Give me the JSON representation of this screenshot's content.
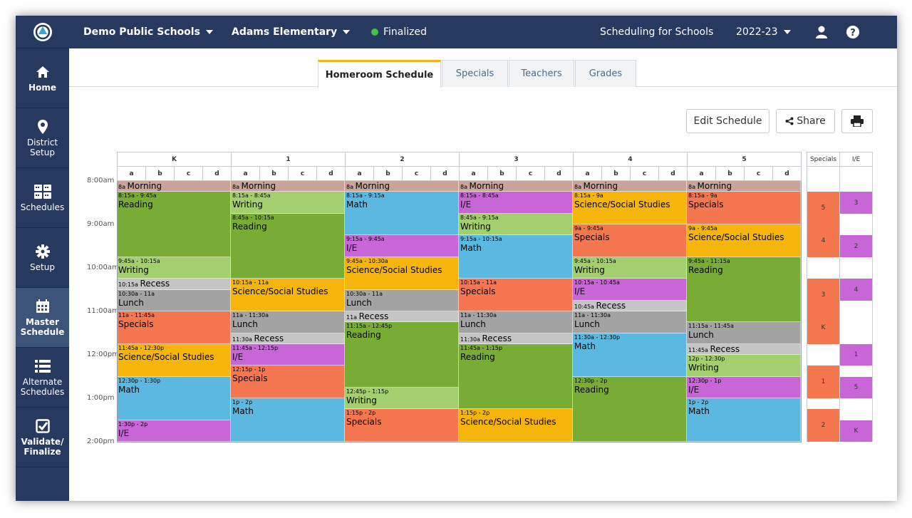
{
  "sidebar": {
    "items": [
      {
        "label": "Home",
        "icon": "home-icon"
      },
      {
        "label": "District\nSetup",
        "icon": "map-pin-icon"
      },
      {
        "label": "Schedules",
        "icon": "calendar-grid-icon"
      },
      {
        "label": "Setup",
        "icon": "gear-icon"
      },
      {
        "label": "Master\nSchedule",
        "icon": "calendar-icon"
      },
      {
        "label": "Alternate\nSchedules",
        "icon": "list-icon"
      },
      {
        "label": "Validate/\nFinalize",
        "icon": "checkbox-icon"
      }
    ]
  },
  "topbar": {
    "district": "Demo Public Schools",
    "school": "Adams Elementary",
    "status": "Finalized",
    "product": "Scheduling for Schools",
    "year": "2022-23"
  },
  "tabs": [
    "Homeroom Schedule",
    "Specials",
    "Teachers",
    "Grades"
  ],
  "actions": {
    "edit": "Edit Schedule",
    "share": "Share"
  },
  "grades": [
    "K",
    "1",
    "2",
    "3",
    "4",
    "5"
  ],
  "sections": [
    "a",
    "b",
    "c",
    "d"
  ],
  "side_headers": [
    "Specials",
    "I/E"
  ],
  "times": [
    "8:00am",
    "9:00am",
    "10:00am",
    "11:00am",
    "12:00pm",
    "1:00pm",
    "2:00pm"
  ],
  "colors": {
    "Morning": "#c9a49a",
    "Reading": "#78ac35",
    "Writing": "#a3cf6e",
    "Math": "#5bb9e1",
    "I/E": "#c866d8",
    "Science/Social Studies": "#f6b50b",
    "Specials": "#f4774f",
    "Recess": "#c5c5c5",
    "Lunch": "#a3a3a3"
  },
  "schedule": [
    [
      {
        "s": 0,
        "e": 15,
        "time": "8a",
        "name": "Morning",
        "inline": true
      },
      {
        "s": 15,
        "e": 105,
        "time": "8:15a - 9:45a",
        "name": "Reading"
      },
      {
        "s": 105,
        "e": 135,
        "time": "9:45a - 10:15a",
        "name": "Writing"
      },
      {
        "s": 135,
        "e": 150,
        "time": "10:15a",
        "name": "Recess",
        "inline": true
      },
      {
        "s": 150,
        "e": 180,
        "time": "10:30a - 11a",
        "name": "Lunch"
      },
      {
        "s": 180,
        "e": 225,
        "time": "11a - 11:45a",
        "name": "Specials"
      },
      {
        "s": 225,
        "e": 270,
        "time": "11:45a - 12:30p",
        "name": "Science/Social Studies"
      },
      {
        "s": 270,
        "e": 330,
        "time": "12:30p - 1:30p",
        "name": "Math"
      },
      {
        "s": 330,
        "e": 360,
        "time": "1:30p - 2p",
        "name": "I/E"
      }
    ],
    [
      {
        "s": 0,
        "e": 15,
        "time": "8a",
        "name": "Morning",
        "inline": true
      },
      {
        "s": 15,
        "e": 45,
        "time": "8:15a - 8:45a",
        "name": "Writing"
      },
      {
        "s": 45,
        "e": 135,
        "time": "8:45a - 10:15a",
        "name": "Reading"
      },
      {
        "s": 135,
        "e": 180,
        "time": "10:15a - 11a",
        "name": "Science/Social Studies"
      },
      {
        "s": 180,
        "e": 210,
        "time": "11a - 11:30a",
        "name": "Lunch"
      },
      {
        "s": 210,
        "e": 225,
        "time": "11:30a",
        "name": "Recess",
        "inline": true
      },
      {
        "s": 225,
        "e": 255,
        "time": "11:45a - 12:15p",
        "name": "I/E"
      },
      {
        "s": 255,
        "e": 300,
        "time": "12:15p - 1p",
        "name": "Specials"
      },
      {
        "s": 300,
        "e": 360,
        "time": "1p - 2p",
        "name": "Math"
      }
    ],
    [
      {
        "s": 0,
        "e": 15,
        "time": "8a",
        "name": "Morning",
        "inline": true
      },
      {
        "s": 15,
        "e": 75,
        "time": "8:15a - 9:15a",
        "name": "Math"
      },
      {
        "s": 75,
        "e": 105,
        "time": "9:15a - 9:45a",
        "name": "I/E"
      },
      {
        "s": 105,
        "e": 150,
        "time": "9:45a - 10:30a",
        "name": "Science/Social Studies"
      },
      {
        "s": 150,
        "e": 180,
        "time": "10:30a - 11a",
        "name": "Lunch"
      },
      {
        "s": 180,
        "e": 195,
        "time": "11a",
        "name": "Recess",
        "inline": true
      },
      {
        "s": 195,
        "e": 285,
        "time": "11:15a - 12:45p",
        "name": "Reading"
      },
      {
        "s": 285,
        "e": 315,
        "time": "12:45p - 1:15p",
        "name": "Writing"
      },
      {
        "s": 315,
        "e": 360,
        "time": "1:15p - 2p",
        "name": "Specials"
      }
    ],
    [
      {
        "s": 0,
        "e": 15,
        "time": "8a",
        "name": "Morning",
        "inline": true
      },
      {
        "s": 15,
        "e": 45,
        "time": "8:15a - 8:45a",
        "name": "I/E"
      },
      {
        "s": 45,
        "e": 75,
        "time": "8:45a - 9:15a",
        "name": "Writing"
      },
      {
        "s": 75,
        "e": 135,
        "time": "9:15a - 10:15a",
        "name": "Math"
      },
      {
        "s": 135,
        "e": 180,
        "time": "10:15a - 11a",
        "name": "Specials"
      },
      {
        "s": 180,
        "e": 210,
        "time": "11a - 11:30a",
        "name": "Lunch"
      },
      {
        "s": 210,
        "e": 225,
        "time": "11:30a",
        "name": "Recess",
        "inline": true
      },
      {
        "s": 225,
        "e": 315,
        "time": "11:45a - 1:15p",
        "name": "Reading"
      },
      {
        "s": 315,
        "e": 360,
        "time": "1:15p - 2p",
        "name": "Science/Social Studies"
      }
    ],
    [
      {
        "s": 0,
        "e": 15,
        "time": "8a",
        "name": "Morning",
        "inline": true
      },
      {
        "s": 15,
        "e": 60,
        "time": "8:15a - 9a",
        "name": "Science/Social Studies"
      },
      {
        "s": 60,
        "e": 105,
        "time": "9a - 9:45a",
        "name": "Specials"
      },
      {
        "s": 105,
        "e": 135,
        "time": "9:45a - 10:15a",
        "name": "Writing"
      },
      {
        "s": 135,
        "e": 165,
        "time": "10:15a - 10:45a",
        "name": "I/E"
      },
      {
        "s": 165,
        "e": 180,
        "time": "10:45a",
        "name": "Recess",
        "inline": true
      },
      {
        "s": 180,
        "e": 210,
        "time": "11a - 11:30a",
        "name": "Lunch"
      },
      {
        "s": 210,
        "e": 270,
        "time": "11:30a - 12:30p",
        "name": "Math"
      },
      {
        "s": 270,
        "e": 360,
        "time": "12:30p - 2p",
        "name": "Reading"
      }
    ],
    [
      {
        "s": 0,
        "e": 15,
        "time": "8a",
        "name": "Morning",
        "inline": true
      },
      {
        "s": 15,
        "e": 60,
        "time": "8:15a - 9a",
        "name": "Specials"
      },
      {
        "s": 60,
        "e": 105,
        "time": "9a - 9:45a",
        "name": "Science/Social Studies"
      },
      {
        "s": 105,
        "e": 195,
        "time": "9:45a - 11:15a",
        "name": "Reading"
      },
      {
        "s": 195,
        "e": 225,
        "time": "11:15a - 11:45a",
        "name": "Lunch"
      },
      {
        "s": 225,
        "e": 240,
        "time": "11:45a",
        "name": "Recess",
        "inline": true
      },
      {
        "s": 240,
        "e": 270,
        "time": "12p - 12:30p",
        "name": "Writing"
      },
      {
        "s": 270,
        "e": 300,
        "time": "12:30p - 1p",
        "name": "I/E"
      },
      {
        "s": 300,
        "e": 360,
        "time": "1p - 2p",
        "name": "Math"
      }
    ]
  ],
  "specials_column": [
    {
      "s": 15,
      "e": 60,
      "label": "5"
    },
    {
      "s": 60,
      "e": 105,
      "label": "4"
    },
    {
      "s": 135,
      "e": 180,
      "label": "3"
    },
    {
      "s": 180,
      "e": 225,
      "label": "K"
    },
    {
      "s": 255,
      "e": 300,
      "label": "1"
    },
    {
      "s": 315,
      "e": 360,
      "label": "2"
    }
  ],
  "ie_column": [
    {
      "s": 15,
      "e": 45,
      "label": "3"
    },
    {
      "s": 75,
      "e": 105,
      "label": "2"
    },
    {
      "s": 135,
      "e": 165,
      "label": "4"
    },
    {
      "s": 225,
      "e": 255,
      "label": "1"
    },
    {
      "s": 270,
      "e": 300,
      "label": "5"
    },
    {
      "s": 330,
      "e": 360,
      "label": "K"
    }
  ]
}
